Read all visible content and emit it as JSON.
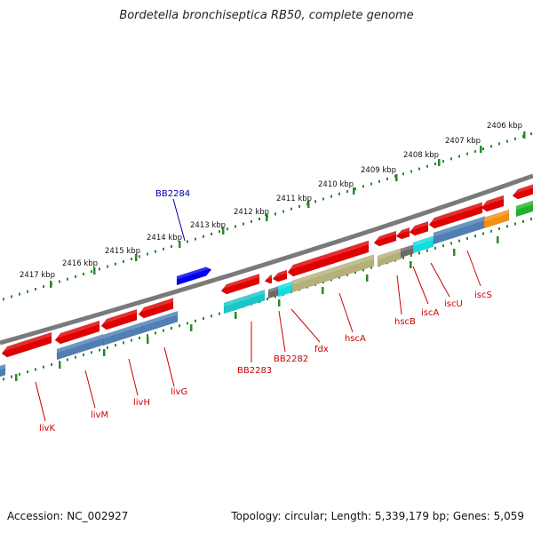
{
  "title": "Bordetella bronchiseptica RB50, complete genome",
  "footer": {
    "accession": "Accession: NC_002927",
    "topology": "Topology: circular; Length: 5,339,179 bp; Genes: 5,059"
  },
  "colors": {
    "red": "#e00000",
    "blue": "#0000ee",
    "steel": "#4f7fb4",
    "cyan": "#10dde0",
    "teal": "#18c7c9",
    "olive": "#b5b07a",
    "gray": "#6a6a6a",
    "orange": "#f39012",
    "green": "#22b22a",
    "backbone": "#7a7a7a",
    "tick": "#2a8a2a",
    "label_red": "#cc0000",
    "label_blue": "#0000aa"
  },
  "outer_scale": [
    {
      "label": "2406 kbp"
    },
    {
      "label": "2407 kbp"
    },
    {
      "label": "2408 kbp"
    },
    {
      "label": "2409 kbp"
    },
    {
      "label": "2410 kbp"
    },
    {
      "label": "2411 kbp"
    },
    {
      "label": "2412 kbp"
    },
    {
      "label": "2413 kbp"
    },
    {
      "label": "2414 kbp"
    },
    {
      "label": "2415 kbp"
    },
    {
      "label": "2416 kbp"
    },
    {
      "label": "2417 kbp"
    }
  ],
  "gene_labels": [
    {
      "name": "BB2284",
      "color": "blue"
    },
    {
      "name": "BB2283",
      "color": "red"
    },
    {
      "name": "BB2282",
      "color": "red"
    },
    {
      "name": "fdx",
      "color": "red"
    },
    {
      "name": "hscA",
      "color": "red"
    },
    {
      "name": "hscB",
      "color": "red"
    },
    {
      "name": "iscA",
      "color": "red"
    },
    {
      "name": "iscU",
      "color": "red"
    },
    {
      "name": "iscS",
      "color": "red"
    },
    {
      "name": "livK",
      "color": "red"
    },
    {
      "name": "livM",
      "color": "red"
    },
    {
      "name": "livH",
      "color": "red"
    },
    {
      "name": "livG",
      "color": "red"
    }
  ]
}
